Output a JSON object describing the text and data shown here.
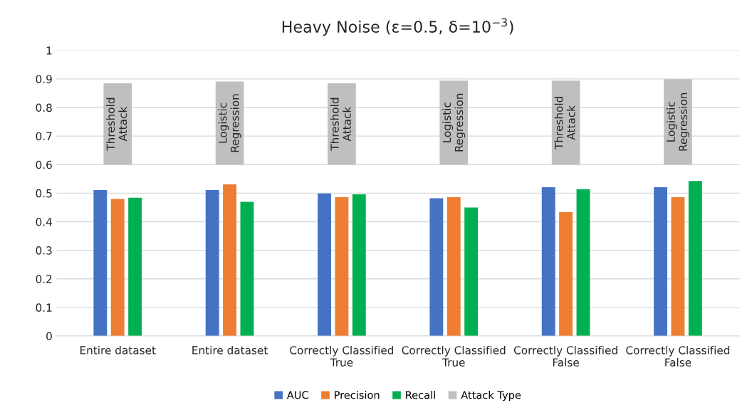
{
  "chart_data": {
    "type": "bar",
    "title": "Heavy Noise (ε=0.5, δ=10$^{−3}$)",
    "categories": [
      "Entire dataset",
      "Entire dataset",
      "Correctly Classified\nTrue",
      "Correctly Classified\nTrue",
      "Correctly Classified\nFalse",
      "Correctly Classified\nFalse"
    ],
    "series": [
      {
        "name": "AUC",
        "color": "#4472c4",
        "values": [
          0.511,
          0.511,
          0.499,
          0.482,
          0.521,
          0.521
        ]
      },
      {
        "name": "Precision",
        "color": "#ed7d31",
        "values": [
          0.48,
          0.531,
          0.486,
          0.486,
          0.434,
          0.486
        ]
      },
      {
        "name": "Recall",
        "color": "#00b050",
        "values": [
          0.484,
          0.47,
          0.496,
          0.45,
          0.514,
          0.543
        ]
      },
      {
        "name": "Attack Type",
        "color": "#bfbfbf",
        "base": [
          0.6,
          0.6,
          0.6,
          0.6,
          0.6,
          0.6
        ],
        "values": [
          0.285,
          0.291,
          0.285,
          0.294,
          0.294,
          0.299
        ],
        "value_labels": [
          "Threshold\nAttack",
          "Logistic\nRegression",
          "Threshold\nAttack",
          "Logistic\nRegression",
          "Threshold\nAttack",
          "Logistic\nRegression"
        ]
      }
    ],
    "ylim": [
      0,
      1
    ],
    "yticks": [
      0,
      0.1,
      0.2,
      0.3,
      0.4,
      0.5,
      0.6,
      0.7,
      0.8,
      0.9,
      1
    ],
    "grid": "y",
    "legend": "bottom"
  }
}
